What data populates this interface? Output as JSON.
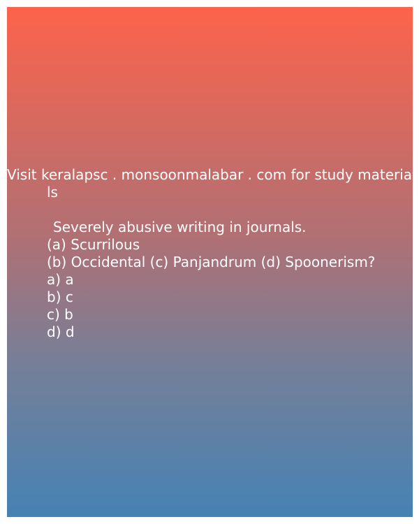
{
  "card": {
    "header_line1": "Visit keralapsc . monsoonmalabar . com for study materia",
    "header_line2": "ls",
    "question": "Severely abusive writing in journals.",
    "option_line1": "(a) Scurrilous",
    "option_line2": "(b) Occidental (c) Panjandrum (d) Spoonerism?",
    "answers": [
      "a) a",
      "b) c",
      "c) b",
      "d) d"
    ]
  },
  "colors": {
    "gradient_top": "#fd634b",
    "gradient_bottom": "#4682b4",
    "text": "#ffffff"
  }
}
